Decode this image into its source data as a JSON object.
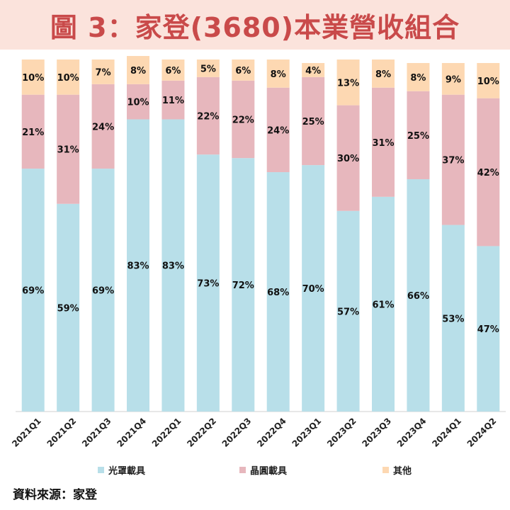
{
  "title": "圖 3：家登(3680)本業營收組合",
  "source": "資料來源：家登",
  "colors": {
    "title_bg": "#fbe3dc",
    "title_text": "#c94a4a",
    "series": [
      "#b8dfe9",
      "#e7b7bd",
      "#fdd8b2"
    ]
  },
  "chart_data": {
    "type": "bar",
    "stacked": true,
    "title": "圖 3：家登(3680)本業營收組合",
    "xlabel": "",
    "ylabel": "",
    "ylim": [
      0,
      100
    ],
    "legend_position": "bottom",
    "categories": [
      "2021Q1",
      "2021Q2",
      "2021Q3",
      "2021Q4",
      "2022Q1",
      "2022Q2",
      "2022Q3",
      "2022Q4",
      "2023Q1",
      "2023Q2",
      "2023Q3",
      "2023Q4",
      "2024Q1",
      "2024Q2"
    ],
    "series": [
      {
        "name": "光罩載具",
        "values": [
          69,
          59,
          69,
          83,
          83,
          73,
          72,
          68,
          70,
          57,
          61,
          66,
          53,
          47
        ]
      },
      {
        "name": "晶圓載具",
        "values": [
          21,
          31,
          24,
          10,
          11,
          22,
          22,
          24,
          25,
          30,
          31,
          25,
          37,
          42
        ]
      },
      {
        "name": "其他",
        "values": [
          10,
          10,
          7,
          8,
          6,
          5,
          6,
          8,
          4,
          13,
          8,
          8,
          9,
          10
        ]
      }
    ]
  }
}
